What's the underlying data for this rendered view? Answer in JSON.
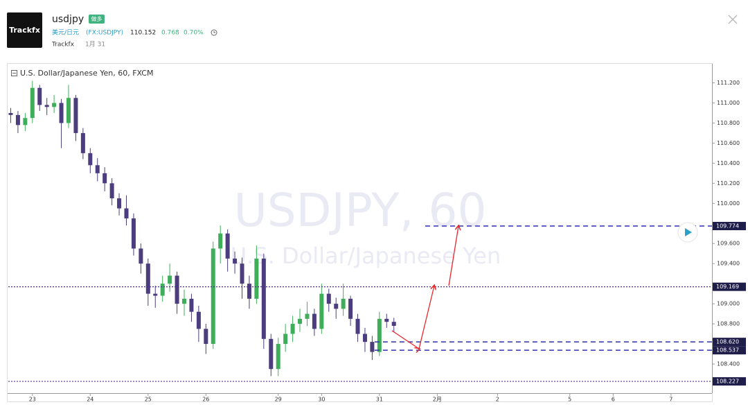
{
  "header": {
    "logo": "Trackfx",
    "title": "usdjpy",
    "badge": "做多",
    "symbol_name": "美元/日元",
    "symbol_code": "(FX:USDJPY)",
    "price": "110.152",
    "change": "0.768",
    "change_pct": "0.70%",
    "author": "Trackfx",
    "date": "1月 31"
  },
  "chart_data": {
    "type": "candlestick",
    "legend": "U.S. Dollar/Japanese Yen, 60, FXCM",
    "watermark": "USDJPY, 60",
    "watermark_sub": "U.S. Dollar/Japanese Yen",
    "up_color": "#3fae5a",
    "down_color": "#4b3d7e",
    "x": [
      1,
      4,
      7,
      10,
      13,
      16,
      19,
      22,
      25,
      28,
      31,
      34,
      37,
      40,
      43,
      46,
      49,
      52,
      55,
      58,
      61,
      64,
      67,
      70,
      73,
      76,
      79,
      82,
      85,
      88,
      91,
      94,
      97,
      100,
      103,
      106,
      109,
      112,
      115,
      118,
      121,
      124,
      127,
      130,
      133,
      136,
      139,
      142,
      145,
      148,
      151,
      154,
      157,
      160
    ],
    "open": [
      110.9,
      110.88,
      110.78,
      110.85,
      111.15,
      110.98,
      110.96,
      111.0,
      110.8,
      111.05,
      110.7,
      110.5,
      110.38,
      110.3,
      110.2,
      110.05,
      109.95,
      109.85,
      109.55,
      109.4,
      109.1,
      109.08,
      109.2,
      109.28,
      109.0,
      109.05,
      108.92,
      108.75,
      108.6,
      109.55,
      109.7,
      109.45,
      109.4,
      109.2,
      109.05,
      109.45,
      108.65,
      108.35,
      108.6,
      108.7,
      108.8,
      108.85,
      108.9,
      108.75,
      109.1,
      109.0,
      108.95,
      109.05,
      108.85,
      108.7,
      108.62,
      108.52,
      108.85,
      108.82
    ],
    "high": [
      110.95,
      110.92,
      110.9,
      111.22,
      111.18,
      111.05,
      111.08,
      111.04,
      111.18,
      111.08,
      110.75,
      110.55,
      110.45,
      110.36,
      110.25,
      110.1,
      110.08,
      109.9,
      109.6,
      109.45,
      109.18,
      109.28,
      109.4,
      109.32,
      109.14,
      109.1,
      108.98,
      108.8,
      109.62,
      109.78,
      109.74,
      109.52,
      109.46,
      109.28,
      109.58,
      109.5,
      108.7,
      108.66,
      108.8,
      108.88,
      108.95,
      109.02,
      108.95,
      109.2,
      109.15,
      109.06,
      109.2,
      109.08,
      108.9,
      108.76,
      108.68,
      108.92,
      108.9,
      108.86
    ],
    "low": [
      110.8,
      110.7,
      110.72,
      110.8,
      110.92,
      110.88,
      110.9,
      110.55,
      110.75,
      110.62,
      110.44,
      110.3,
      110.22,
      110.12,
      109.98,
      109.88,
      109.78,
      109.48,
      109.3,
      108.98,
      108.96,
      109.02,
      109.12,
      108.9,
      108.88,
      108.82,
      108.62,
      108.5,
      108.55,
      109.4,
      109.32,
      109.3,
      109.05,
      108.95,
      109.0,
      108.55,
      108.28,
      108.28,
      108.52,
      108.62,
      108.72,
      108.78,
      108.68,
      108.7,
      108.92,
      108.85,
      108.88,
      108.78,
      108.62,
      108.52,
      108.44,
      108.48,
      108.76,
      108.72
    ],
    "close": [
      110.88,
      110.78,
      110.85,
      111.15,
      110.98,
      110.96,
      111.0,
      110.8,
      111.05,
      110.7,
      110.5,
      110.38,
      110.3,
      110.2,
      110.05,
      109.95,
      109.85,
      109.55,
      109.4,
      109.1,
      109.08,
      109.2,
      109.28,
      109.0,
      109.05,
      108.92,
      108.75,
      108.6,
      109.55,
      109.7,
      109.45,
      109.4,
      109.2,
      109.05,
      109.45,
      108.65,
      108.35,
      108.6,
      108.7,
      108.8,
      108.85,
      108.9,
      108.75,
      109.1,
      109.0,
      108.95,
      109.05,
      108.85,
      108.7,
      108.62,
      108.52,
      108.85,
      108.82,
      108.78
    ],
    "xlim": [
      0,
      292
    ],
    "xticks": [
      {
        "value": 10,
        "label": "23"
      },
      {
        "value": 34,
        "label": "24"
      },
      {
        "value": 58,
        "label": "25"
      },
      {
        "value": 82,
        "label": "26"
      },
      {
        "value": 112,
        "label": "29"
      },
      {
        "value": 130,
        "label": "30"
      },
      {
        "value": 154,
        "label": "31"
      },
      {
        "value": 178,
        "label": "2月"
      },
      {
        "value": 203,
        "label": "2"
      },
      {
        "value": 233,
        "label": "5"
      },
      {
        "value": 251,
        "label": "6"
      },
      {
        "value": 275,
        "label": "7"
      }
    ],
    "ylim": [
      108.11,
      111.39
    ],
    "yticks": [
      {
        "value": 111.2,
        "label": "111.200"
      },
      {
        "value": 111.0,
        "label": "111.000"
      },
      {
        "value": 110.8,
        "label": "110.800"
      },
      {
        "value": 110.6,
        "label": "110.600"
      },
      {
        "value": 110.4,
        "label": "110.400"
      },
      {
        "value": 110.2,
        "label": "110.200"
      },
      {
        "value": 110.0,
        "label": "110.000"
      },
      {
        "value": 109.6,
        "label": "109.600"
      },
      {
        "value": 109.4,
        "label": "109.400"
      },
      {
        "value": 109.0,
        "label": "109.000"
      },
      {
        "value": 108.8,
        "label": "108.800"
      },
      {
        "value": 108.4,
        "label": "108.400"
      }
    ],
    "levels": [
      {
        "value": 109.774,
        "label": "109.774",
        "style": "dashed",
        "color": "#2f2fb0",
        "from": 173
      },
      {
        "value": 109.169,
        "label": "109.169",
        "style": "dotted",
        "color": "#4b2f8f"
      },
      {
        "value": 108.62,
        "label": "108.620",
        "style": "dashed",
        "color": "#2f2fb0",
        "from": 152
      },
      {
        "value": 108.537,
        "label": "108.537",
        "style": "dashed",
        "color": "#2f2fb0",
        "from": 152
      },
      {
        "value": 108.227,
        "label": "108.227",
        "style": "dotted",
        "color": "#4b2f8f"
      }
    ]
  }
}
